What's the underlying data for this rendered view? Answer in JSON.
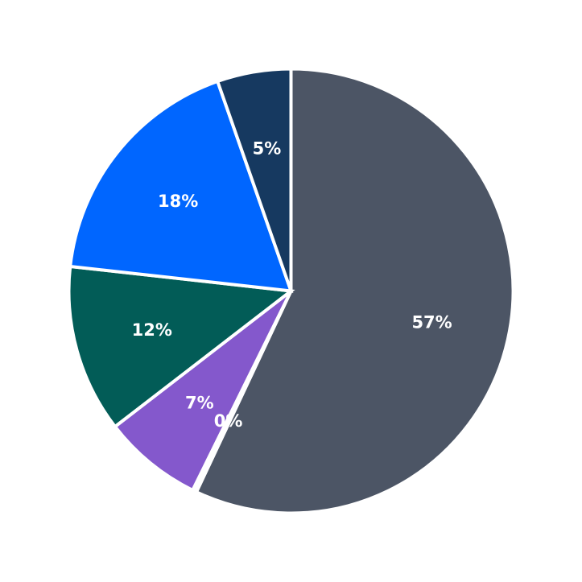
{
  "chart_data": {
    "type": "pie",
    "start_angle_deg": 90,
    "direction": "clockwise",
    "slices": [
      {
        "label_text": "57%",
        "value": 57.4,
        "color": "#4c5565"
      },
      {
        "label_text": "0%",
        "value": 0.3,
        "color": "#ffffff"
      },
      {
        "label_text": "7%",
        "value": 7.3,
        "color": "#8458cc"
      },
      {
        "label_text": "12%",
        "value": 12.3,
        "color": "#025c57"
      },
      {
        "label_text": "18%",
        "value": 18.0,
        "color": "#0066ff"
      },
      {
        "label_text": "5%",
        "value": 5.4,
        "color": "#163960"
      }
    ]
  }
}
